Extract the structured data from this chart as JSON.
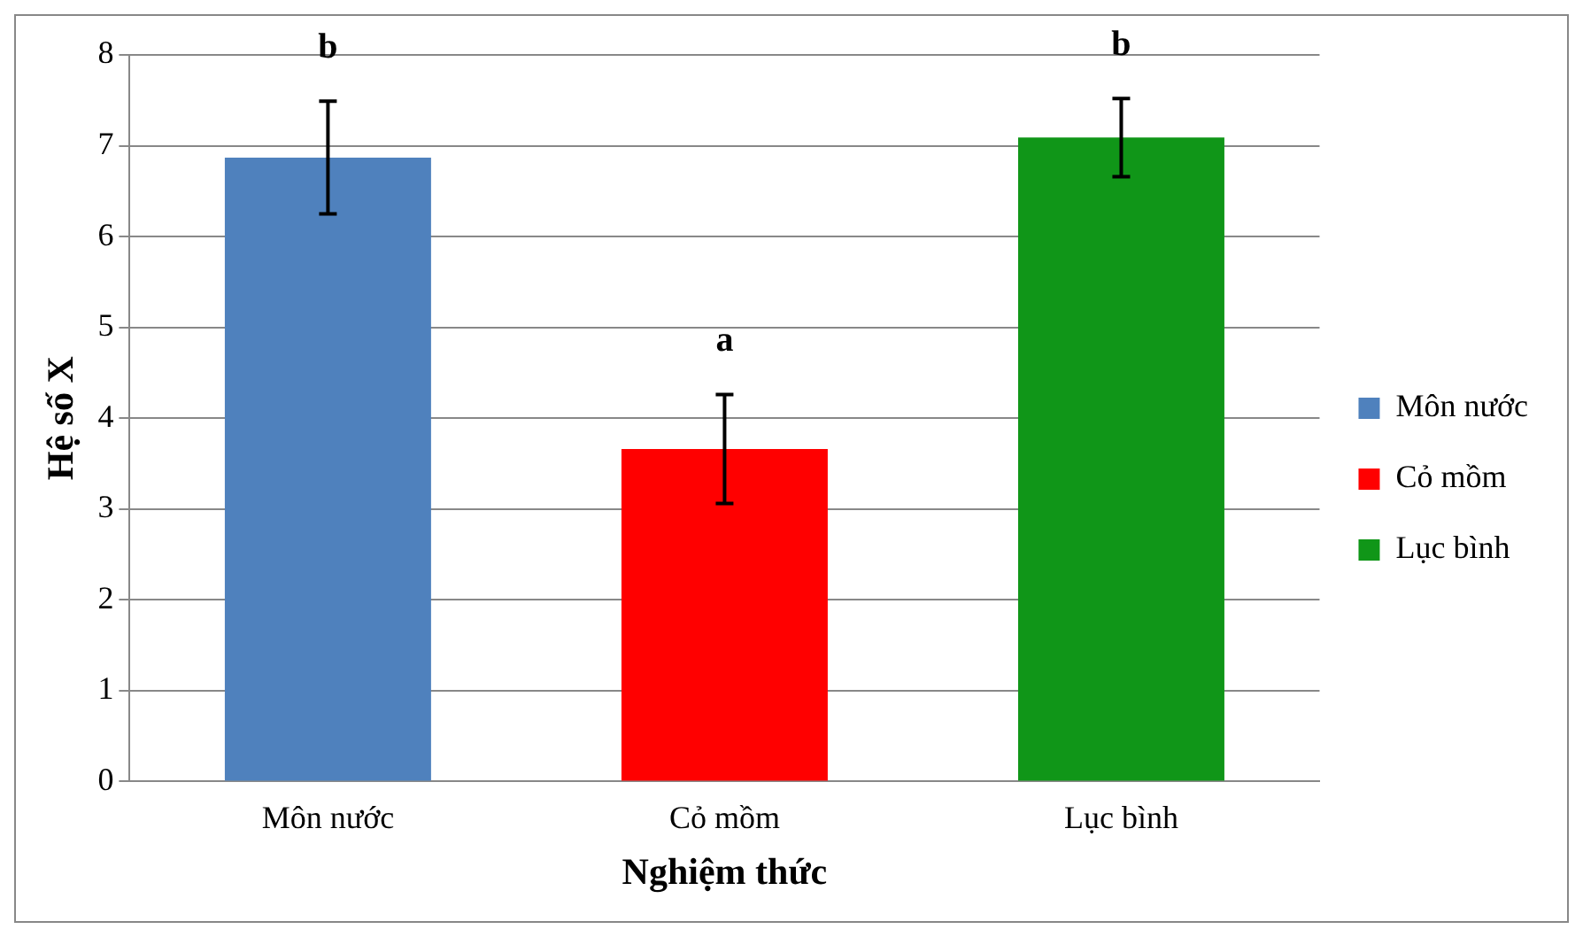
{
  "chart_data": {
    "type": "bar",
    "xlabel": "Nghiệm thức",
    "ylabel": "Hệ số X",
    "categories": [
      "Môn nước",
      "Cỏ mồm",
      "Lục bình"
    ],
    "series": [
      {
        "name": "Môn nước",
        "color": "#4f81bd",
        "values": [
          6.87,
          null,
          null
        ],
        "errors": [
          0.62,
          null,
          null
        ]
      },
      {
        "name": "Cỏ mồm",
        "color": "#ff0000",
        "values": [
          null,
          3.66,
          null
        ],
        "errors": [
          null,
          0.6,
          null
        ]
      },
      {
        "name": "Lục bình",
        "color": "#109618",
        "values": [
          null,
          null,
          7.09
        ],
        "errors": [
          null,
          null,
          0.43
        ]
      }
    ],
    "ylim": [
      0,
      8
    ],
    "yticks": [
      0,
      1,
      2,
      3,
      4,
      5,
      6,
      7,
      8
    ],
    "grid": "y",
    "legend": "right",
    "annotations": [
      "b",
      "a",
      "b"
    ]
  }
}
